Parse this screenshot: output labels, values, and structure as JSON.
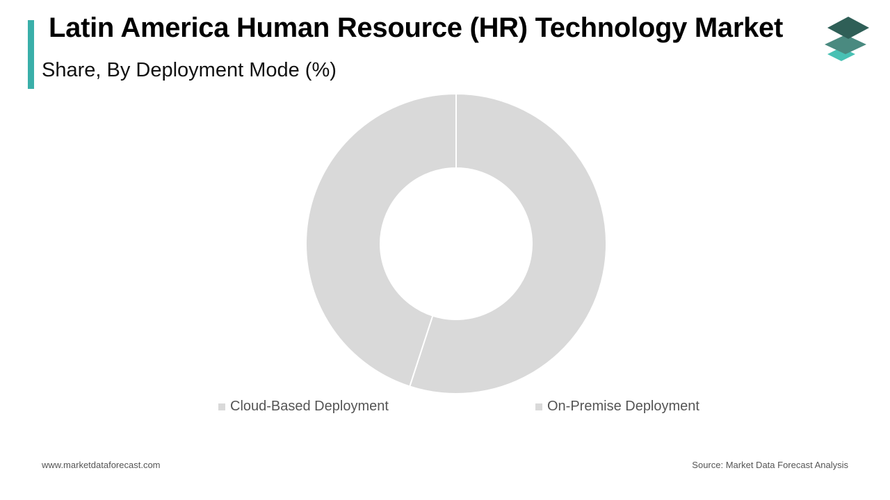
{
  "header": {
    "title": "Latin America Human Resource (HR) Technology Market",
    "subtitle": "Share, By Deployment Mode (%)",
    "accent_color": "#3aafa9"
  },
  "logo": {
    "icon": "stacked-layers-logo-icon",
    "colors": [
      "#2f5f57",
      "#4a8a80",
      "#49c1b4"
    ]
  },
  "chart_data": {
    "type": "pie",
    "variant": "donut",
    "title": "Latin America Human Resource (HR) Technology Market",
    "subtitle": "Share, By Deployment Mode (%)",
    "slices": [
      {
        "label": "Cloud-Based Deployment",
        "value": 55,
        "color": "#d9d9d9"
      },
      {
        "label": "On-Premise Deployment",
        "value": 45,
        "color": "#d9d9d9"
      }
    ],
    "legend_position": "bottom"
  },
  "footer": {
    "website": "www.marketdataforecast.com",
    "source": "Source: Market Data Forecast Analysis"
  }
}
